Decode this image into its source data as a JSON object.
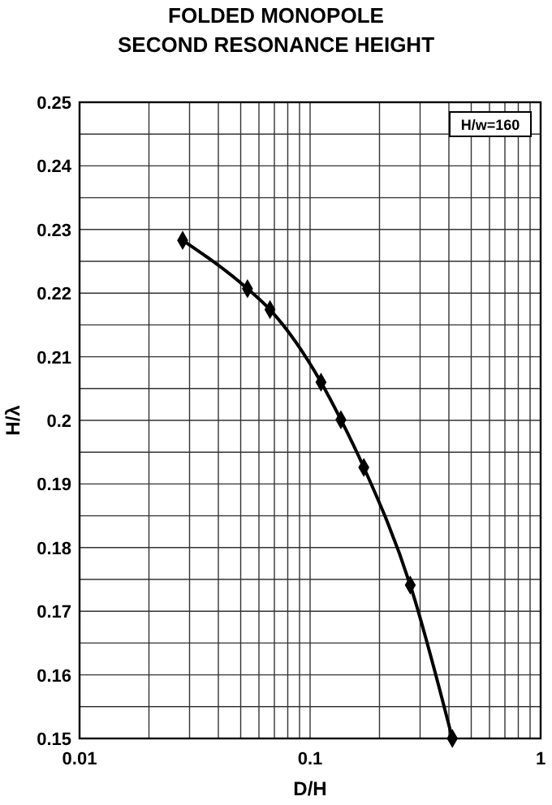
{
  "chart_data": {
    "type": "line",
    "title": "FOLDED MONOPOLE\nSECOND RESONANCE HEIGHT",
    "xlabel": "D/H",
    "ylabel": "H/λ",
    "annotations": [
      "H/w=160"
    ],
    "x": [
      0.028,
      0.0535,
      0.067,
      0.1115,
      0.136,
      0.171,
      0.272,
      0.414
    ],
    "series": [
      {
        "color": "#000000",
        "values": [
          0.2283,
          0.2207,
          0.2174,
          0.206,
          0.2001,
          0.1926,
          0.1741,
          0.15
        ]
      }
    ],
    "log": "x",
    "xlim": [
      0.01,
      1
    ],
    "ylim": [
      0.15,
      0.25
    ],
    "xticks": [
      0.01,
      {
        "value": 0.02,
        "label": null
      },
      {
        "value": 0.03,
        "label": null
      },
      {
        "value": 0.04,
        "label": null
      },
      {
        "value": 0.05,
        "label": null
      },
      {
        "value": 0.06,
        "label": null
      },
      {
        "value": 0.07,
        "label": null
      },
      {
        "value": 0.08,
        "label": null
      },
      {
        "value": 0.09,
        "label": null
      },
      0.1,
      {
        "value": 0.2,
        "label": null
      },
      {
        "value": 0.3,
        "label": null
      },
      {
        "value": 0.4,
        "label": null
      },
      {
        "value": 0.5,
        "label": null
      },
      {
        "value": 0.6,
        "label": null
      },
      {
        "value": 0.7,
        "label": null
      },
      {
        "value": 0.8,
        "label": null
      },
      {
        "value": 0.9,
        "label": null
      },
      1
    ],
    "yticks": [
      0.15,
      {
        "value": 0.155,
        "label": null
      },
      0.16,
      {
        "value": 0.165,
        "label": null
      },
      0.17,
      {
        "value": 0.175,
        "label": null
      },
      0.18,
      {
        "value": 0.185,
        "label": null
      },
      0.19,
      {
        "value": 0.195,
        "label": null
      },
      0.2,
      {
        "value": 0.205,
        "label": null
      },
      0.21,
      {
        "value": 0.215,
        "label": null
      },
      0.22,
      {
        "value": 0.225,
        "label": null
      },
      0.23,
      {
        "value": 0.235,
        "label": null
      },
      0.24,
      {
        "value": 0.245,
        "label": null
      },
      0.25
    ],
    "grid": true,
    "marker": "diamond",
    "line_style": "solid"
  }
}
